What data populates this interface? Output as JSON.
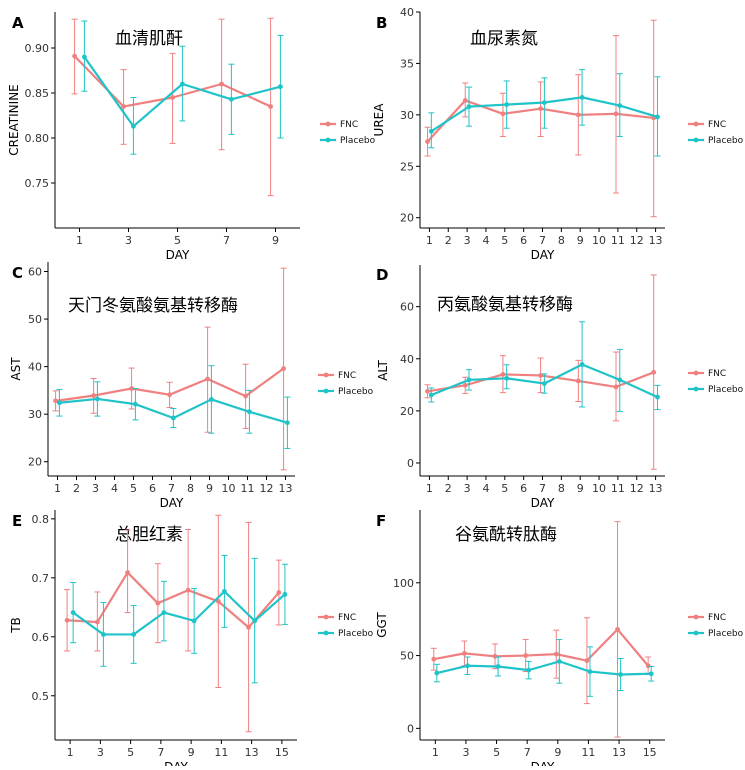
{
  "colors": {
    "fnc": "#F08080",
    "placebo": "#1FC3C8",
    "axis": "#000000"
  },
  "legend": {
    "fnc": "FNC",
    "placebo": "Placebo"
  },
  "chart_data": [
    {
      "type": "line",
      "letter": "A",
      "title": "血清肌酐",
      "xlabel": "DAY",
      "ylabel": "CREATININE",
      "xlim": [
        0,
        10
      ],
      "ylim": [
        0.7,
        0.94
      ],
      "xticks": [
        1,
        3,
        5,
        7,
        9
      ],
      "yticks": [
        0.75,
        0.8,
        0.85,
        0.9
      ],
      "ytick_labels": [
        "0.75",
        "0.80",
        "0.85",
        "0.90"
      ],
      "series": [
        {
          "name": "FNC",
          "x": [
            0.8,
            2.8,
            4.8,
            6.8,
            8.8
          ],
          "y": [
            0.891,
            0.835,
            0.845,
            0.86,
            0.835
          ],
          "err_lo": [
            0.849,
            0.793,
            0.794,
            0.787,
            0.736
          ],
          "err_hi": [
            0.932,
            0.876,
            0.894,
            0.932,
            0.933
          ]
        },
        {
          "name": "Placebo",
          "x": [
            1.2,
            3.2,
            5.2,
            7.2,
            9.2
          ],
          "y": [
            0.89,
            0.813,
            0.86,
            0.843,
            0.857
          ],
          "err_lo": [
            0.852,
            0.782,
            0.819,
            0.804,
            0.8
          ],
          "err_hi": [
            0.93,
            0.845,
            0.902,
            0.882,
            0.914
          ]
        }
      ]
    },
    {
      "type": "line",
      "letter": "B",
      "title": "血尿素氮",
      "xlabel": "DAY",
      "ylabel": "UREA",
      "xlim": [
        0.5,
        13.5
      ],
      "ylim": [
        19,
        40
      ],
      "xticks": [
        1,
        2,
        3,
        4,
        5,
        6,
        7,
        8,
        9,
        10,
        11,
        12,
        13
      ],
      "yticks": [
        20,
        25,
        30,
        35,
        40
      ],
      "ytick_labels": [
        "20",
        "25",
        "30",
        "35",
        "40"
      ],
      "series": [
        {
          "name": "FNC",
          "x": [
            0.9,
            2.9,
            4.9,
            6.9,
            8.9,
            10.9,
            12.9
          ],
          "y": [
            27.4,
            31.4,
            30.1,
            30.6,
            30.0,
            30.1,
            29.7
          ],
          "err_lo": [
            26.0,
            29.8,
            27.9,
            27.9,
            26.1,
            22.4,
            20.1
          ],
          "err_hi": [
            28.8,
            33.1,
            32.1,
            33.2,
            33.9,
            37.7,
            39.2
          ]
        },
        {
          "name": "Placebo",
          "x": [
            1.1,
            3.1,
            5.1,
            7.1,
            9.1,
            11.1,
            13.1
          ],
          "y": [
            28.4,
            30.8,
            31.0,
            31.2,
            31.7,
            30.9,
            29.8
          ],
          "err_lo": [
            26.8,
            28.9,
            28.7,
            28.7,
            29.0,
            27.9,
            26.0
          ],
          "err_hi": [
            30.2,
            32.7,
            33.3,
            33.6,
            34.4,
            34.0,
            33.7
          ]
        }
      ]
    },
    {
      "type": "line",
      "letter": "C",
      "title": "天门冬氨酸氨基转移酶",
      "xlabel": "DAY",
      "ylabel": "AST",
      "xlim": [
        0.5,
        13.5
      ],
      "ylim": [
        17,
        62
      ],
      "xticks": [
        1,
        2,
        3,
        4,
        5,
        6,
        7,
        8,
        9,
        10,
        11,
        12,
        13
      ],
      "yticks": [
        20,
        30,
        40,
        50,
        60
      ],
      "ytick_labels": [
        "20",
        "30",
        "40",
        "50",
        "60"
      ],
      "series": [
        {
          "name": "FNC",
          "x": [
            0.9,
            2.9,
            4.9,
            6.9,
            8.9,
            10.9,
            12.9
          ],
          "y": [
            32.8,
            33.9,
            35.4,
            34.1,
            37.4,
            33.8,
            39.6
          ],
          "err_lo": [
            30.7,
            30.2,
            31.1,
            31.4,
            26.2,
            27.0,
            18.3
          ],
          "err_hi": [
            34.9,
            37.5,
            39.7,
            36.7,
            48.3,
            40.5,
            60.7
          ]
        },
        {
          "name": "Placebo",
          "x": [
            1.1,
            3.1,
            5.1,
            7.1,
            9.1,
            11.1,
            13.1
          ],
          "y": [
            32.4,
            33.2,
            32.1,
            29.2,
            33.1,
            30.5,
            28.2
          ],
          "err_lo": [
            29.6,
            29.6,
            28.8,
            27.2,
            26.0,
            26.0,
            22.8
          ],
          "err_hi": [
            35.2,
            36.8,
            35.4,
            31.2,
            40.2,
            35.0,
            33.6
          ]
        }
      ]
    },
    {
      "type": "line",
      "letter": "D",
      "title": "丙氨酸氨基转移酶",
      "xlabel": "DAY",
      "ylabel": "ALT",
      "xlim": [
        0.5,
        13.5
      ],
      "ylim": [
        -5,
        76
      ],
      "xticks": [
        1,
        2,
        3,
        4,
        5,
        6,
        7,
        8,
        9,
        10,
        11,
        12,
        13
      ],
      "yticks": [
        0,
        20,
        40,
        60
      ],
      "ytick_labels": [
        "0",
        "20",
        "40",
        "60"
      ],
      "series": [
        {
          "name": "FNC",
          "x": [
            0.9,
            2.9,
            4.9,
            6.9,
            8.9,
            10.9,
            12.9
          ],
          "y": [
            27.5,
            29.8,
            34.0,
            33.6,
            31.5,
            29.2,
            34.8
          ],
          "err_lo": [
            25.0,
            26.7,
            27.0,
            27.0,
            23.6,
            16.2,
            -2.4
          ],
          "err_hi": [
            30.0,
            32.9,
            41.2,
            40.3,
            39.4,
            42.6,
            72.2
          ]
        },
        {
          "name": "Placebo",
          "x": [
            1.1,
            3.1,
            5.1,
            7.1,
            9.1,
            11.1,
            13.1
          ],
          "y": [
            26.1,
            31.9,
            32.5,
            30.5,
            37.8,
            31.9,
            25.3
          ],
          "err_lo": [
            23.4,
            28.0,
            28.5,
            26.8,
            21.5,
            19.8,
            20.5
          ],
          "err_hi": [
            28.8,
            35.8,
            37.7,
            34.2,
            54.2,
            43.6,
            29.8
          ]
        }
      ]
    },
    {
      "type": "line",
      "letter": "E",
      "title": "总胆红素",
      "xlabel": "DAY",
      "ylabel": "TB",
      "xlim": [
        0,
        16
      ],
      "ylim": [
        0.425,
        0.815
      ],
      "xticks": [
        1,
        3,
        5,
        7,
        9,
        11,
        13,
        15
      ],
      "yticks": [
        0.5,
        0.6,
        0.7,
        0.8
      ],
      "ytick_labels": [
        "0.5",
        "0.6",
        "0.7",
        "0.8"
      ],
      "series": [
        {
          "name": "FNC",
          "x": [
            0.8,
            2.8,
            4.8,
            6.8,
            8.8,
            10.8,
            12.8,
            14.8
          ],
          "y": [
            0.628,
            0.625,
            0.709,
            0.657,
            0.679,
            0.66,
            0.616,
            0.675
          ],
          "err_lo": [
            0.576,
            0.576,
            0.641,
            0.59,
            0.576,
            0.514,
            0.439,
            0.62
          ],
          "err_hi": [
            0.68,
            0.676,
            0.781,
            0.724,
            0.782,
            0.806,
            0.794,
            0.73
          ]
        },
        {
          "name": "Placebo",
          "x": [
            1.2,
            3.2,
            5.2,
            7.2,
            9.2,
            11.2,
            13.2,
            15.2
          ],
          "y": [
            0.641,
            0.604,
            0.604,
            0.641,
            0.627,
            0.677,
            0.627,
            0.672
          ],
          "err_lo": [
            0.59,
            0.55,
            0.555,
            0.593,
            0.572,
            0.616,
            0.522,
            0.621
          ],
          "err_hi": [
            0.692,
            0.658,
            0.653,
            0.694,
            0.682,
            0.738,
            0.733,
            0.723
          ]
        }
      ]
    },
    {
      "type": "line",
      "letter": "F",
      "title": "谷氨酰转肽酶",
      "xlabel": "DAY",
      "ylabel": "GGT",
      "xlim": [
        0,
        16
      ],
      "ylim": [
        -8,
        150
      ],
      "xticks": [
        1,
        3,
        5,
        7,
        9,
        11,
        13,
        15
      ],
      "yticks": [
        0,
        50,
        100
      ],
      "ytick_labels": [
        "0",
        "50",
        "100"
      ],
      "series": [
        {
          "name": "FNC",
          "x": [
            0.9,
            2.9,
            4.9,
            6.9,
            8.9,
            10.9,
            12.9,
            14.9
          ],
          "y": [
            47.5,
            51.5,
            49.5,
            50.0,
            51.0,
            46.5,
            68.0,
            43.0
          ],
          "err_lo": [
            40.0,
            43.0,
            41.0,
            39.0,
            34.5,
            17.0,
            -6.0,
            37.0
          ],
          "err_hi": [
            55.0,
            60.0,
            58.0,
            61.0,
            67.5,
            76.0,
            142.0,
            49.0
          ]
        },
        {
          "name": "Placebo",
          "x": [
            1.1,
            3.1,
            5.1,
            7.1,
            9.1,
            11.1,
            13.1,
            15.1
          ],
          "y": [
            38.0,
            43.0,
            42.5,
            40.0,
            46.0,
            39.0,
            37.0,
            37.5
          ],
          "err_lo": [
            32.0,
            37.0,
            36.0,
            34.0,
            31.0,
            22.0,
            26.0,
            32.5
          ],
          "err_hi": [
            44.0,
            49.0,
            49.0,
            46.0,
            61.0,
            56.0,
            48.0,
            42.5
          ]
        }
      ]
    }
  ]
}
